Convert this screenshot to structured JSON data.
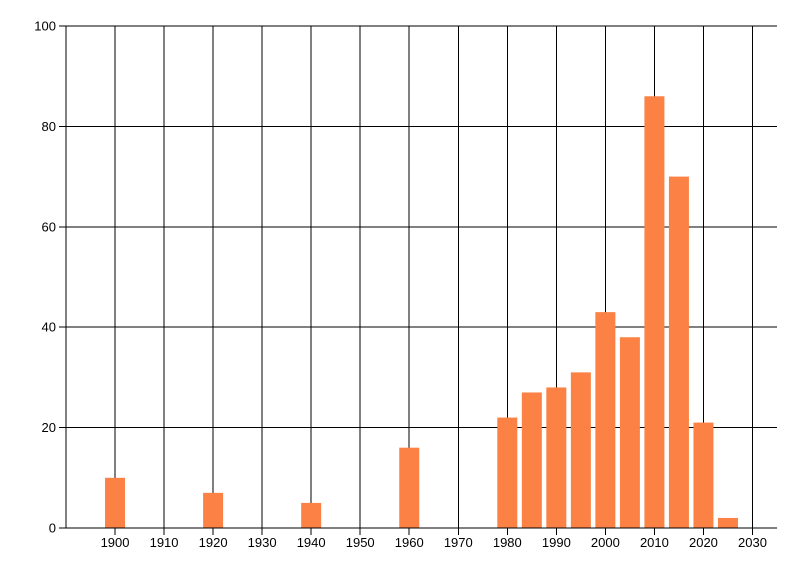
{
  "figure": {
    "background": "#ffffff"
  },
  "chart_data": {
    "type": "bar",
    "title": "",
    "xlabel": "",
    "ylabel": "",
    "x": [
      1900,
      1920,
      1940,
      1960,
      1980,
      1985,
      1990,
      1995,
      2000,
      2005,
      2010,
      2015,
      2020,
      2025
    ],
    "values": [
      10,
      7,
      5,
      16,
      22,
      27,
      28,
      31,
      43,
      38,
      86,
      70,
      21,
      2
    ],
    "xlim": [
      1890,
      2035
    ],
    "ylim": [
      0,
      100
    ],
    "x_ticks": [
      1900,
      1910,
      1920,
      1930,
      1940,
      1950,
      1960,
      1970,
      1980,
      1990,
      2000,
      2010,
      2020,
      2030
    ],
    "y_ticks": [
      0,
      20,
      40,
      60,
      80,
      100
    ],
    "grid": true,
    "legend": null,
    "bar_color": "#fb8144",
    "grid_color": "#000000",
    "axis_color": "#000000",
    "text_color": "#000000"
  }
}
